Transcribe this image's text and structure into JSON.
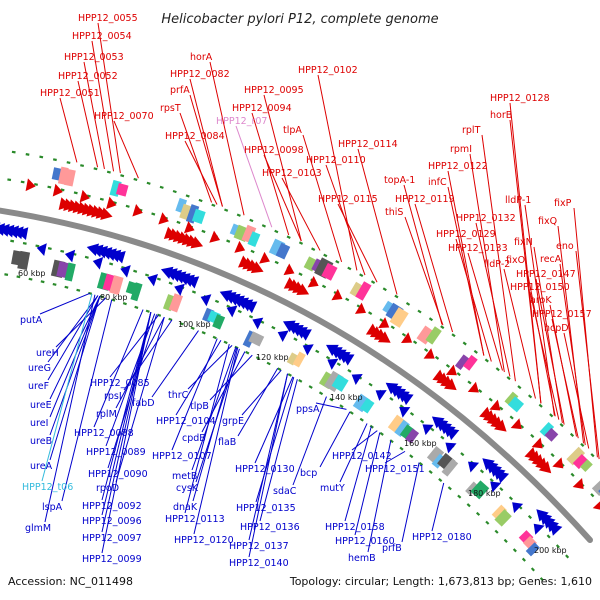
{
  "title": "Helicobacter pylori P12, complete genome",
  "footer": {
    "accession": "Accession: NC_011498",
    "stats": "Topology: circular; Length: 1,673,813 bp; Genes: 1,610"
  },
  "colors": {
    "forward": "#dd0000",
    "reverse": "#0000cc",
    "trna": "#33bbdd",
    "rrna": "#dd88cc",
    "backbone": "#8a8a8a",
    "ticks": "#2a8a2a"
  },
  "scale_labels": [
    "60 kbp",
    "80 kbp",
    "100 kbp",
    "120 kbp",
    "140 kbp",
    "160 kbp",
    "180 kbp",
    "200 kbp"
  ],
  "forward_genes": [
    "HPP12_0055",
    "HPP12_0054",
    "HPP12_0053",
    "HPP12_0052",
    "HPP12_0051",
    "HPP12_0070",
    "horA",
    "HPP12_0082",
    "prfA",
    "rpsT",
    "HPP12_0084",
    "HPP12_0095",
    "HPP12_0094",
    "HPP12_0098",
    "tlpA",
    "HPP12_0102",
    "HPP12_0103",
    "HPP12_0110",
    "HPP12_0114",
    "HPP12_0115",
    "topA-1",
    "thiS",
    "HPP12_0119",
    "infC",
    "HPP12_0122",
    "rpmI",
    "rplT",
    "horB",
    "HPP12_0128",
    "HPP12_0132",
    "lldP-1",
    "HPP12_0129",
    "fixP",
    "fixQ",
    "HPP12_0133",
    "lldP-2",
    "fixN",
    "eno",
    "fixO",
    "recA",
    "HPP12_0147",
    "HPP12_0150",
    "aroK",
    "HPP12_0157",
    "hcpD"
  ],
  "reverse_genes": [
    "putA",
    "ureH",
    "ureG",
    "ureF",
    "ureE",
    "ureI",
    "ureB",
    "ureA",
    "lspA",
    "glmM",
    "HPP12_0085",
    "rpsI",
    "fabD",
    "rplM",
    "HPP12_0088",
    "HPP12_0089",
    "HPP12_0090",
    "rpoD",
    "HPP12_0092",
    "HPP12_0096",
    "HPP12_0097",
    "HPP12_0099",
    "thrC",
    "tlpB",
    "HPP12_0104",
    "grpE",
    "cpdB",
    "HPP12_0107",
    "flaB",
    "metB",
    "cysK",
    "dnaK",
    "HPP12_0113",
    "HPP12_0120",
    "ppsA",
    "HPP12_0130",
    "sdaC",
    "bcp",
    "HPP12_0142",
    "HPP12_0151",
    "mutY",
    "HPP12_0135",
    "HPP12_0136",
    "HPP12_0137",
    "HPP12_0140",
    "HPP12_0158",
    "HPP12_0160",
    "hemB",
    "prfB",
    "HPP12_0180"
  ],
  "trna_genes": [
    "HPP12_t06"
  ],
  "rrna_genes": [
    "HPP12_r07"
  ]
}
